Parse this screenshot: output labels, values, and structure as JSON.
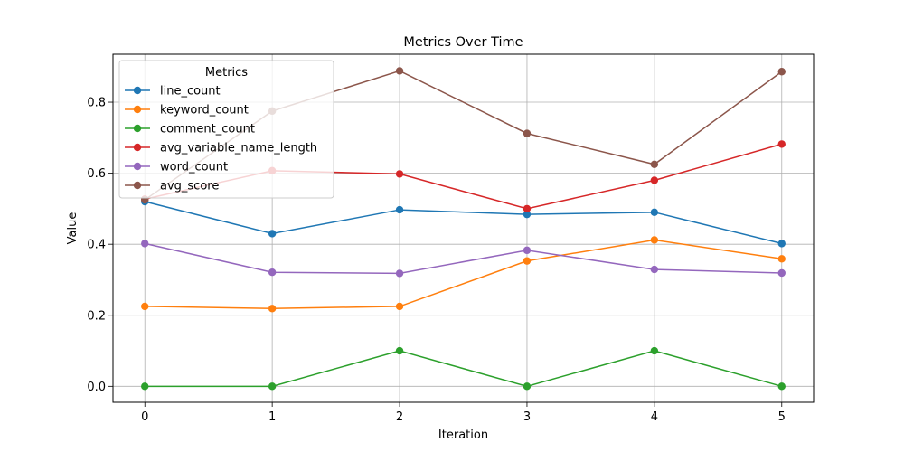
{
  "chart_data": {
    "type": "line",
    "title": "Metrics Over Time",
    "xlabel": "Iteration",
    "ylabel": "Value",
    "x": [
      0,
      1,
      2,
      3,
      4,
      5
    ],
    "xlim": [
      -0.25,
      5.25
    ],
    "ylim": [
      -0.045,
      0.935
    ],
    "xticks": [
      "0",
      "1",
      "2",
      "3",
      "4",
      "5"
    ],
    "yticks": [
      "0.0",
      "0.2",
      "0.4",
      "0.6",
      "0.8"
    ],
    "grid": true,
    "legend_title": "Metrics",
    "legend_position": "upper-left",
    "series": [
      {
        "name": "line_count",
        "color": "#1f77b4",
        "values": [
          0.52,
          0.43,
          0.497,
          0.484,
          0.49,
          0.402
        ]
      },
      {
        "name": "keyword_count",
        "color": "#ff7f0e",
        "values": [
          0.225,
          0.219,
          0.225,
          0.353,
          0.412,
          0.359
        ]
      },
      {
        "name": "comment_count",
        "color": "#2ca02c",
        "values": [
          0.0,
          0.0,
          0.1,
          0.0,
          0.1,
          0.0
        ]
      },
      {
        "name": "avg_variable_name_length",
        "color": "#d62728",
        "values": [
          0.527,
          0.607,
          0.598,
          0.5,
          0.58,
          0.682
        ]
      },
      {
        "name": "word_count",
        "color": "#9467bd",
        "values": [
          0.402,
          0.321,
          0.318,
          0.383,
          0.329,
          0.319
        ]
      },
      {
        "name": "avg_score",
        "color": "#8c564b",
        "values": [
          0.525,
          0.775,
          0.888,
          0.712,
          0.625,
          0.886
        ]
      }
    ]
  }
}
